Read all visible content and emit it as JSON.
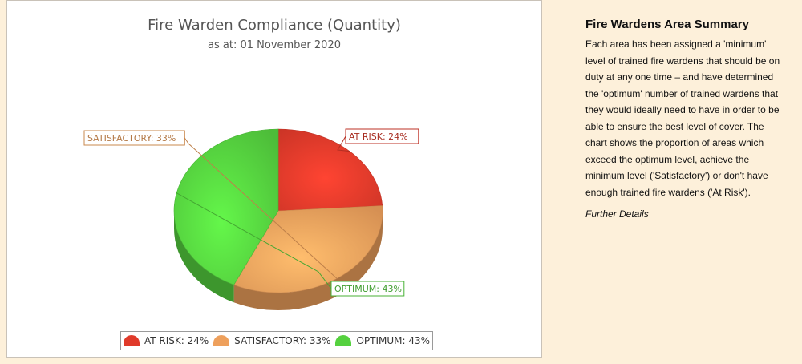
{
  "chart_data": {
    "type": "pie",
    "title": "Fire Warden Compliance (Quantity)",
    "subtitle": "as at: 01 November 2020",
    "slices": [
      {
        "label": "AT RISK",
        "value": 24,
        "color": "#e03a2a",
        "data_label": "AT RISK: 24%"
      },
      {
        "label": "SATISFACTORY",
        "value": 33,
        "color": "#eea05c",
        "data_label": "SATISFACTORY: 33%"
      },
      {
        "label": "OPTIMUM",
        "value": 43,
        "color": "#55d13f",
        "data_label": "OPTIMUM: 43%"
      }
    ],
    "legend_placement": "bottom",
    "legend": [
      "AT RISK: 24%",
      "SATISFACTORY: 33%",
      "OPTIMUM: 43%"
    ]
  },
  "info": {
    "title": "Fire Wardens Area Summary",
    "body": "Each area has been assigned a 'minimum' level of trained fire wardens that should be on duty at any one time – and have determined the 'optimum' number of trained wardens that they would ideally need to have in order to be able to ensure the best level of cover. The chart shows the proportion of areas  which exceed the optimum level, achieve the minimum level ('Satisfactory') or don't have enough trained fire wardens ('At Risk').",
    "link": "Further Details"
  }
}
